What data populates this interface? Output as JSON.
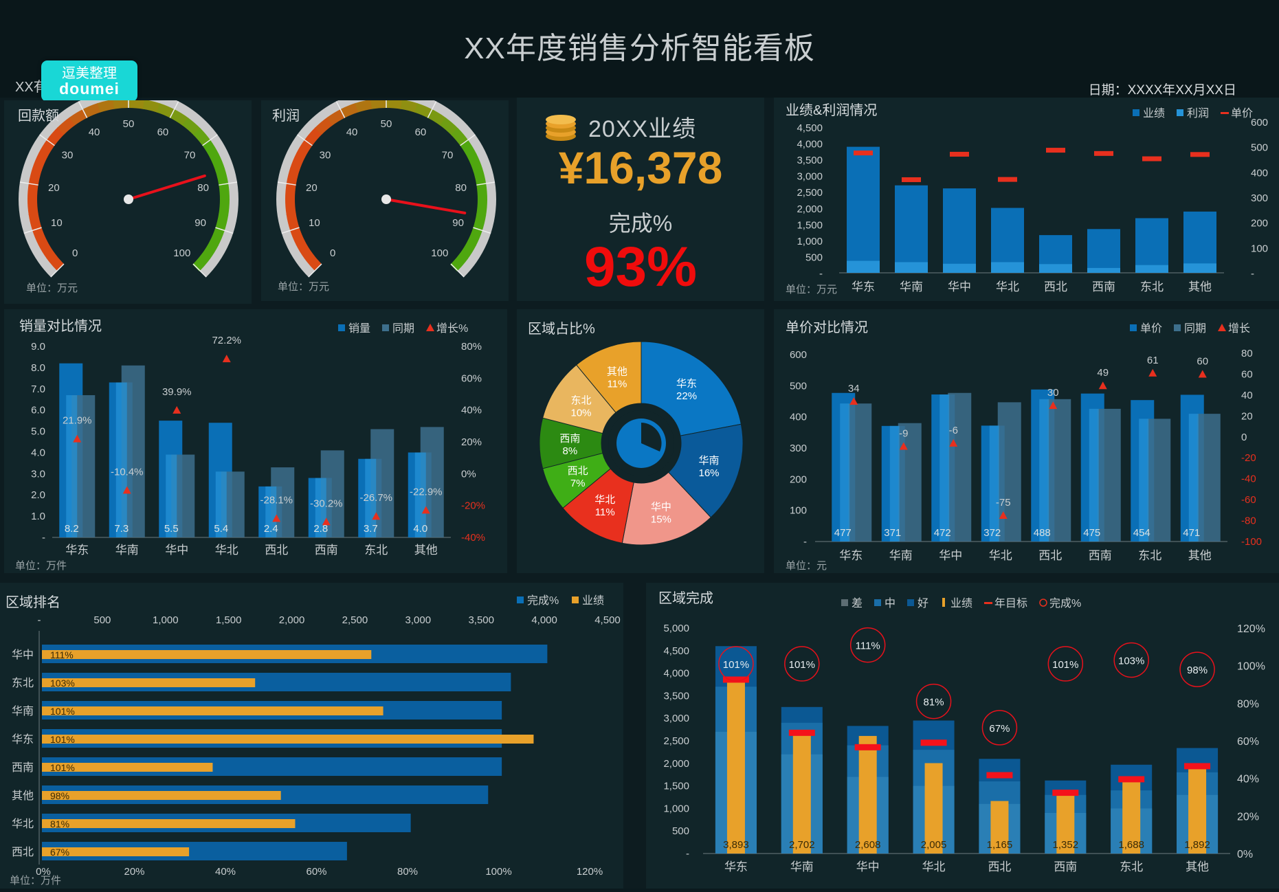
{
  "header": {
    "title": "XX年度销售分析智能看板",
    "subtitle": "XX有",
    "date": "日期：XXXX年XX月XX日"
  },
  "logo": {
    "line1": "逗美整理",
    "line2": "doumei"
  },
  "colors": {
    "bg": "#0d1c20",
    "panel": "#112529",
    "blue": "#0a6fb6",
    "lightblue": "#2593d8",
    "grayblue": "#3d6f8c",
    "orange": "#e8a12a",
    "red": "#e8301e",
    "green": "#4aa616"
  },
  "gauges": [
    {
      "title": "回款额",
      "unit": "单位：万元",
      "value": 77,
      "ticks": [
        "0",
        "10",
        "20",
        "30",
        "40",
        "50",
        "60",
        "70",
        "80",
        "90",
        "100"
      ]
    },
    {
      "title": "利润",
      "unit": "单位：万元",
      "value": 87,
      "ticks": [
        "0",
        "10",
        "20",
        "30",
        "40",
        "50",
        "60",
        "70",
        "80",
        "90",
        "100"
      ]
    }
  ],
  "kpi": {
    "icon": "coins-icon",
    "label": "20XX业绩",
    "value": "¥16,378",
    "rate_label": "完成%",
    "rate": "93%"
  },
  "chart_data": [
    {
      "id": "perf",
      "type": "bar",
      "title": "业绩&利润情况",
      "unit": "单位：万元",
      "categories": [
        "华东",
        "华南",
        "华中",
        "华北",
        "西北",
        "西南",
        "东北",
        "其他"
      ],
      "legend": [
        "业绩",
        "利润",
        "单价"
      ],
      "series": [
        {
          "name": "业绩",
          "values": [
            3893,
            2702,
            2608,
            2005,
            1165,
            1352,
            1688,
            1892
          ]
        },
        {
          "name": "利润",
          "values": [
            370,
            330,
            280,
            330,
            270,
            150,
            240,
            290
          ]
        },
        {
          "name": "单价",
          "axis": "right",
          "values": [
            477,
            371,
            472,
            372,
            488,
            475,
            454,
            471
          ]
        }
      ],
      "y_ticks": [
        "4,500",
        "4,000",
        "3,500",
        "3,000",
        "2,500",
        "2,000",
        "1,500",
        "1,000",
        "500",
        "-"
      ],
      "y2_ticks": [
        "600",
        "500",
        "400",
        "300",
        "200",
        "100",
        "-"
      ],
      "ylim": [
        0,
        4500
      ],
      "y2lim": [
        0,
        600
      ]
    },
    {
      "id": "sales",
      "type": "bar",
      "title": "销量对比情况",
      "unit": "单位：万件",
      "categories": [
        "华东",
        "华南",
        "华中",
        "华北",
        "西北",
        "西南",
        "东北",
        "其他"
      ],
      "legend": [
        "销量",
        "同期",
        "增长%"
      ],
      "series": [
        {
          "name": "销量",
          "values": [
            8.2,
            7.3,
            5.5,
            5.4,
            2.4,
            2.8,
            3.7,
            4.0
          ]
        },
        {
          "name": "同期",
          "values": [
            6.7,
            8.1,
            3.9,
            3.1,
            3.3,
            4.1,
            5.1,
            5.2
          ]
        },
        {
          "name": "增长%",
          "axis": "right",
          "values": [
            21.9,
            -10.4,
            39.9,
            72.2,
            -28.1,
            -30.2,
            -26.7,
            -22.9
          ]
        }
      ],
      "value_labels": [
        "8.2",
        "7.3",
        "5.5",
        "5.4",
        "2.4",
        "2.8",
        "3.7",
        "4.0"
      ],
      "growth_labels": [
        "21.9%",
        "-10.4%",
        "39.9%",
        "72.2%",
        "-28.1%",
        "-30.2%",
        "-26.7%",
        "-22.9%"
      ],
      "y_ticks": [
        "9.0",
        "8.0",
        "7.0",
        "6.0",
        "5.0",
        "4.0",
        "3.0",
        "2.0",
        "1.0",
        "-"
      ],
      "y2_ticks": [
        "80%",
        "60%",
        "40%",
        "20%",
        "0%",
        "-20%",
        "-40%"
      ],
      "ylim": [
        0,
        9
      ],
      "y2lim": [
        -40,
        80
      ]
    },
    {
      "id": "share",
      "type": "pie",
      "title": "区域占比%",
      "slices": [
        {
          "label": "华东",
          "pct": "22%",
          "value": 22,
          "color": "#0a77c4"
        },
        {
          "label": "华南",
          "pct": "16%",
          "value": 16,
          "color": "#0a5a9a"
        },
        {
          "label": "华中",
          "pct": "15%",
          "value": 15,
          "color": "#f0968a"
        },
        {
          "label": "华北",
          "pct": "11%",
          "value": 11,
          "color": "#e8301e"
        },
        {
          "label": "西北",
          "pct": "7%",
          "value": 7,
          "color": "#3fae16"
        },
        {
          "label": "西南",
          "pct": "8%",
          "value": 8,
          "color": "#2c8a12"
        },
        {
          "label": "东北",
          "pct": "10%",
          "value": 10,
          "color": "#e9b65f"
        },
        {
          "label": "其他",
          "pct": "11%",
          "value": 11,
          "color": "#e8a12a"
        }
      ]
    },
    {
      "id": "price",
      "type": "bar",
      "title": "单价对比情况",
      "unit": "单位：元",
      "categories": [
        "华东",
        "华南",
        "华中",
        "华北",
        "西北",
        "西南",
        "东北",
        "其他"
      ],
      "legend": [
        "单价",
        "同期",
        "增长"
      ],
      "series": [
        {
          "name": "单价",
          "values": [
            477,
            371,
            472,
            372,
            488,
            475,
            454,
            471
          ]
        },
        {
          "name": "同期",
          "values": [
            443,
            380,
            477,
            447,
            457,
            426,
            394,
            410
          ]
        },
        {
          "name": "增长",
          "axis": "right",
          "values": [
            34,
            -9,
            -6,
            -75,
            30,
            49,
            61,
            60
          ]
        }
      ],
      "value_labels": [
        "477",
        "371",
        "472",
        "372",
        "488",
        "475",
        "454",
        "471"
      ],
      "growth_labels": [
        "34",
        "-9",
        "-6",
        "-75",
        "30",
        "49",
        "61",
        "60"
      ],
      "y_ticks": [
        "600",
        "500",
        "400",
        "300",
        "200",
        "100",
        "-"
      ],
      "y2_ticks": [
        "80",
        "60",
        "40",
        "20",
        "0",
        "-20",
        "-40",
        "-60",
        "-80",
        "-100"
      ],
      "ylim": [
        0,
        600
      ],
      "y2lim": [
        -100,
        80
      ]
    },
    {
      "id": "rank",
      "type": "bar",
      "orientation": "horizontal",
      "title": "区域排名",
      "unit": "单位：万件",
      "categories": [
        "华中",
        "东北",
        "华南",
        "华东",
        "西南",
        "其他",
        "华北",
        "西北"
      ],
      "legend": [
        "完成%",
        "业绩"
      ],
      "series": [
        {
          "name": "完成%",
          "values": [
            111,
            103,
            101,
            101,
            101,
            98,
            81,
            67
          ]
        },
        {
          "name": "业绩",
          "values": [
            2608,
            1688,
            2702,
            3893,
            1352,
            1892,
            2005,
            1165
          ]
        }
      ],
      "pct_labels": [
        "111%",
        "103%",
        "101%",
        "101%",
        "101%",
        "98%",
        "81%",
        "67%"
      ],
      "top_ticks": [
        "-",
        "500",
        "1,000",
        "1,500",
        "2,000",
        "2,500",
        "3,000",
        "3,500",
        "4,000",
        "4,500"
      ],
      "bottom_ticks": [
        "0%",
        "20%",
        "40%",
        "60%",
        "80%",
        "100%",
        "120%"
      ],
      "xlim": [
        0,
        4500
      ],
      "x2lim": [
        0,
        120
      ]
    },
    {
      "id": "complete",
      "type": "bar",
      "title": "区域完成",
      "categories": [
        "华东",
        "华南",
        "华中",
        "华北",
        "西北",
        "西南",
        "东北",
        "其他"
      ],
      "legend": [
        "差",
        "中",
        "好",
        "业绩",
        "年目标",
        "完成%"
      ],
      "bands": {
        "差": [
          2700,
          2200,
          1700,
          1500,
          1100,
          900,
          1000,
          1300
        ],
        "中": [
          3700,
          2900,
          2400,
          2300,
          1600,
          1300,
          1400,
          1800
        ],
        "好": [
          4600,
          3250,
          2830,
          2950,
          2100,
          1620,
          1970,
          2340
        ]
      },
      "series": [
        {
          "name": "业绩",
          "values": [
            3893,
            2702,
            2608,
            2005,
            1165,
            1352,
            1688,
            1892
          ]
        },
        {
          "name": "年目标",
          "values": [
            3850,
            2670,
            2350,
            2450,
            1730,
            1340,
            1640,
            1930
          ]
        },
        {
          "name": "完成%",
          "axis": "right",
          "values": [
            101,
            101,
            111,
            81,
            67,
            101,
            103,
            98
          ]
        }
      ],
      "value_labels": [
        "3,893",
        "2,702",
        "2,608",
        "2,005",
        "1,165",
        "1,352",
        "1,688",
        "1,892"
      ],
      "pct_labels": [
        "101%",
        "101%",
        "111%",
        "81%",
        "67%",
        "101%",
        "103%",
        "98%"
      ],
      "y_ticks": [
        "5,000",
        "4,500",
        "4,000",
        "3,500",
        "3,000",
        "2,500",
        "2,000",
        "1,500",
        "1,000",
        "500",
        "-"
      ],
      "y2_ticks": [
        "120%",
        "100%",
        "80%",
        "60%",
        "40%",
        "20%",
        "0%"
      ],
      "ylim": [
        0,
        5000
      ],
      "y2lim": [
        0,
        120
      ]
    }
  ]
}
